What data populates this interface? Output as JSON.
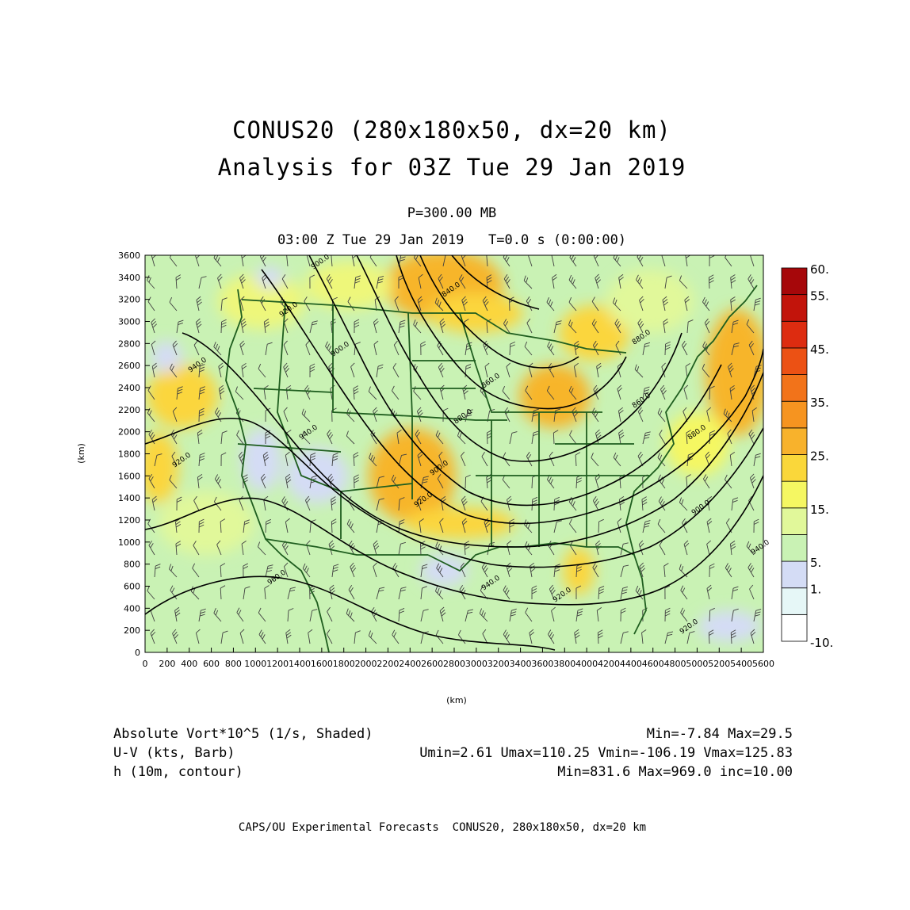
{
  "title": {
    "line1": "CONUS20 (280x180x50, dx=20 km)",
    "line2": "Analysis for 03Z Tue 29 Jan 2019"
  },
  "subtitle": {
    "pressure": "P=300.00 MB",
    "time": "03:00 Z Tue 29 Jan 2019   T=0.0 s (0:00:00)"
  },
  "axes": {
    "x_unit": "(km)",
    "y_unit": "(km)",
    "x_ticks": [
      "0",
      "200",
      "400",
      "600",
      "800",
      "1000",
      "1200",
      "1400",
      "1600",
      "1800",
      "2000",
      "2200",
      "2400",
      "2600",
      "2800",
      "3000",
      "3200",
      "3400",
      "3600",
      "3800",
      "4000",
      "4200",
      "4400",
      "4600",
      "4800",
      "5000",
      "5200",
      "5400",
      "5600"
    ],
    "y_ticks": [
      "0",
      "200",
      "400",
      "600",
      "800",
      "1000",
      "1200",
      "1400",
      "1600",
      "1800",
      "2000",
      "2200",
      "2400",
      "2600",
      "2800",
      "3000",
      "3200",
      "3400",
      "3600"
    ],
    "x_range": [
      0,
      5600
    ],
    "y_range": [
      0,
      3600
    ]
  },
  "colorbar": {
    "labels": [
      "60.",
      "55.",
      "45.",
      "35.",
      "25.",
      "15.",
      "5.",
      "1.",
      "-10."
    ],
    "colors": [
      "#ffffff",
      "#e6f7f7",
      "#d4dcf5",
      "#c9f2b4",
      "#e1f89a",
      "#f5f762",
      "#fad73a",
      "#f8b22c",
      "#f69420",
      "#f2731a",
      "#ec5114",
      "#dd2c10",
      "#c2140b",
      "#a6070a"
    ]
  },
  "contours": {
    "labels": [
      "900.0",
      "920.0",
      "940.0",
      "960.0",
      "940.0",
      "920.0",
      "900.0",
      "880.0",
      "860.0",
      "840.0",
      "880.0",
      "860.0",
      "880.0",
      "900.0",
      "920.0",
      "940.0",
      "940.0",
      "920.0",
      "900.0",
      "920.0"
    ]
  },
  "footer": {
    "line1_left": "Absolute Vort*10^5 (1/s, Shaded)",
    "line1_right": "Min=-7.84 Max=29.5",
    "line2_left": "U-V (kts, Barb)",
    "line2_right": "Umin=2.61 Umax=110.25 Vmin=-106.19 Vmax=125.83",
    "line3_left": "h (10m, contour)",
    "line3_right": "Min=831.6 Max=969.0 inc=10.00",
    "credit": "CAPS/OU Experimental Forecasts  CONUS20, 280x180x50, dx=20 km"
  },
  "colors": {
    "map_base": "#c9f2b4",
    "state_lines": "#1f5e1f",
    "contour_lines": "#000000",
    "barbs": "#404040"
  }
}
